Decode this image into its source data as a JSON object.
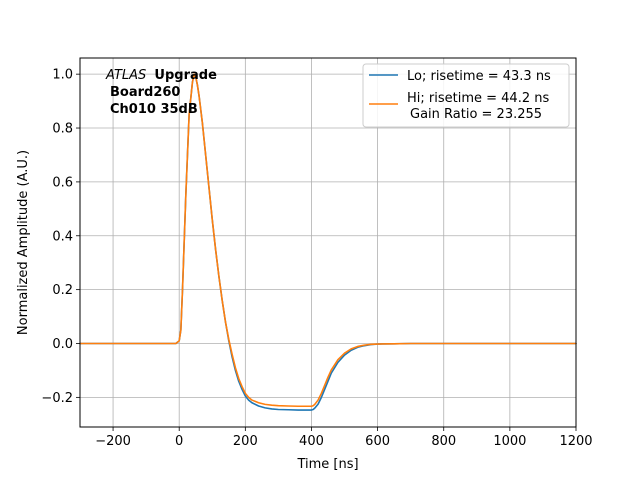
{
  "chart_data": {
    "type": "line",
    "title": "",
    "xlabel": "Time [ns]",
    "ylabel": "Normalized Amplitude (A.U.)",
    "xlim": [
      -300,
      1200
    ],
    "ylim": [
      -0.31,
      1.06
    ],
    "x_ticks": [
      -200,
      0,
      200,
      400,
      600,
      800,
      1000,
      1200
    ],
    "x_tick_labels": [
      "−200",
      "0",
      "200",
      "400",
      "600",
      "800",
      "1000",
      "1200"
    ],
    "y_ticks": [
      -0.2,
      0.0,
      0.2,
      0.4,
      0.6,
      0.8,
      1.0
    ],
    "y_tick_labels": [
      "−0.2",
      "0.0",
      "0.2",
      "0.4",
      "0.6",
      "0.8",
      "1.0"
    ],
    "grid": true,
    "legend_position": "top-right",
    "annotation": {
      "experiment": "ATLAS",
      "tag": "Upgrade",
      "line2": "Board260",
      "line3": "Ch010 35dB"
    },
    "series": [
      {
        "name": "Lo; risetime = 43.3 ns",
        "color": "#1f77b4",
        "x": [
          -300,
          -10,
          0,
          5,
          10,
          20,
          30,
          40,
          45,
          50,
          55,
          60,
          70,
          80,
          90,
          100,
          110,
          120,
          130,
          140,
          150,
          160,
          170,
          180,
          190,
          200,
          210,
          220,
          240,
          260,
          280,
          300,
          330,
          360,
          390,
          400,
          405,
          410,
          420,
          430,
          440,
          450,
          460,
          480,
          500,
          520,
          540,
          560,
          580,
          600,
          650,
          700,
          800,
          1000,
          1200
        ],
        "y": [
          0.0,
          0.0,
          0.01,
          0.05,
          0.2,
          0.55,
          0.85,
          0.97,
          1.0,
          0.99,
          0.96,
          0.92,
          0.82,
          0.7,
          0.58,
          0.46,
          0.35,
          0.25,
          0.16,
          0.08,
          0.01,
          -0.05,
          -0.1,
          -0.14,
          -0.17,
          -0.195,
          -0.21,
          -0.22,
          -0.232,
          -0.239,
          -0.243,
          -0.245,
          -0.246,
          -0.247,
          -0.247,
          -0.247,
          -0.245,
          -0.24,
          -0.225,
          -0.2,
          -0.17,
          -0.14,
          -0.11,
          -0.07,
          -0.043,
          -0.025,
          -0.014,
          -0.008,
          -0.004,
          -0.002,
          -0.001,
          0.0,
          0.0,
          0.0,
          0.0
        ]
      },
      {
        "name": "Hi; risetime = 44.2 ns",
        "name_line2": "Gain Ratio = 23.255",
        "color": "#ff7f0e",
        "x": [
          -300,
          -10,
          0,
          5,
          10,
          20,
          30,
          40,
          45,
          50,
          55,
          60,
          70,
          80,
          90,
          100,
          110,
          120,
          130,
          140,
          150,
          160,
          170,
          180,
          190,
          200,
          210,
          220,
          240,
          260,
          280,
          300,
          330,
          360,
          390,
          400,
          405,
          410,
          420,
          430,
          440,
          450,
          460,
          480,
          500,
          520,
          540,
          560,
          580,
          600,
          650,
          700,
          800,
          1000,
          1200
        ],
        "y": [
          0.0,
          0.0,
          0.01,
          0.05,
          0.2,
          0.55,
          0.85,
          0.97,
          1.0,
          0.99,
          0.96,
          0.92,
          0.82,
          0.7,
          0.58,
          0.46,
          0.35,
          0.25,
          0.16,
          0.08,
          0.015,
          -0.04,
          -0.09,
          -0.13,
          -0.16,
          -0.185,
          -0.2,
          -0.21,
          -0.22,
          -0.226,
          -0.229,
          -0.231,
          -0.232,
          -0.233,
          -0.233,
          -0.233,
          -0.231,
          -0.226,
          -0.21,
          -0.185,
          -0.155,
          -0.125,
          -0.098,
          -0.06,
          -0.036,
          -0.02,
          -0.011,
          -0.006,
          -0.003,
          -0.002,
          -0.001,
          0.0,
          0.0,
          0.0,
          0.0
        ]
      }
    ]
  }
}
